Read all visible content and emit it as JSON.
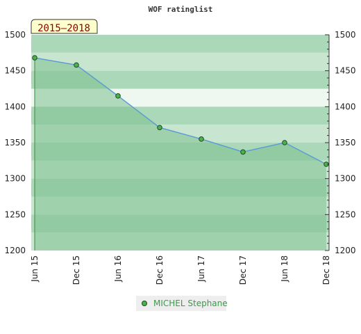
{
  "chart_data": {
    "type": "area",
    "title": "WOF ratinglist",
    "period_badge": "2015–2018",
    "x_ticks": [
      "Jun 15",
      "Dec 15",
      "Jun 16",
      "Dec 16",
      "Jun 17",
      "Dec 17",
      "Jun 18",
      "Dec 18"
    ],
    "y_ticks": [
      "1200",
      "1250",
      "1300",
      "1350",
      "1400",
      "1450",
      "1500"
    ],
    "ylim": [
      1200,
      1500
    ],
    "grid": "horizontal bands",
    "legend_position": "bottom",
    "series": [
      {
        "name": "MICHEL Stephane",
        "x": [
          "Jun 15",
          "Dec 15",
          "Jun 16",
          "Dec 16",
          "Jun 17",
          "Dec 17",
          "Jun 18",
          "Dec 18"
        ],
        "values": [
          1468,
          1458,
          1415,
          1371,
          1355,
          1337,
          1350,
          1320
        ]
      }
    ],
    "colors": {
      "line": "#5b9bd5",
      "area": "#7ec08f",
      "marker_fill": "#4caf50",
      "marker_stroke": "#1e4d1e",
      "band_light": "#c8e6cf",
      "band_dark": "#aad8b8",
      "band_white": "#eef7f0"
    }
  }
}
